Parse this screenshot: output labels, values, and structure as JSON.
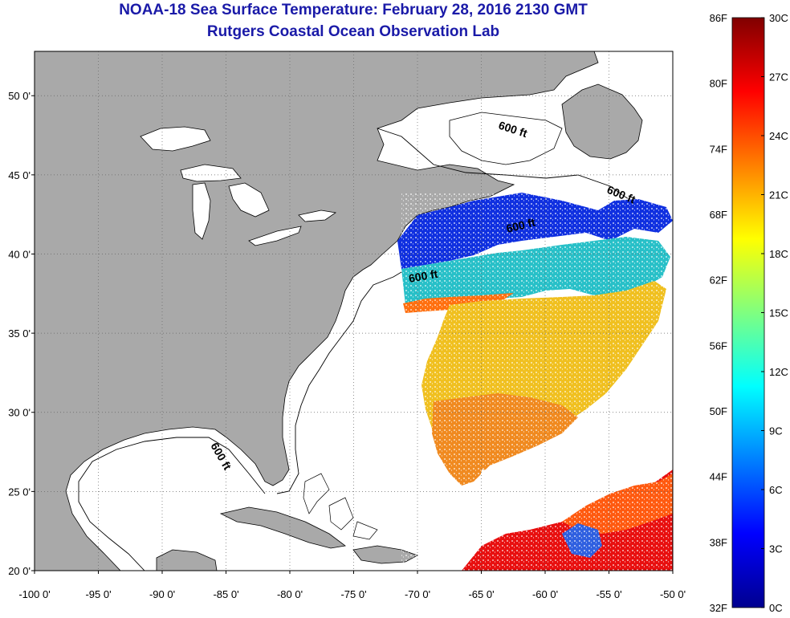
{
  "title": {
    "line1": "NOAA-18 Sea Surface Temperature:  February 28, 2016 2130 GMT",
    "line2": "Rutgers Coastal Ocean Observation Lab"
  },
  "map": {
    "lat_labels": [
      "50 0'",
      "45 0'",
      "40 0'",
      "35 0'",
      "30 0'",
      "25 0'",
      "20 0'"
    ],
    "lat_values": [
      50,
      45,
      40,
      35,
      30,
      25,
      20
    ],
    "lon_labels": [
      "-100 0'",
      "-95 0'",
      "-90 0'",
      "-85 0'",
      "-80 0'",
      "-75 0'",
      "-70 0'",
      "-65 0'",
      "-60 0'",
      "-55 0'",
      "-50 0'"
    ],
    "lon_values": [
      -100,
      -95,
      -90,
      -85,
      -80,
      -75,
      -70,
      -65,
      -60,
      -55,
      -50
    ],
    "lon_range": [
      -100,
      -50
    ],
    "lat_range": [
      20,
      52.8
    ],
    "isobath_label": "600 ft",
    "land_color": "#a9a9a9",
    "ocean_color": "#ffffff",
    "grid": true,
    "grid_style": "dotted"
  },
  "colorbar": {
    "fahrenheit_labels": [
      "86F",
      "80F",
      "74F",
      "68F",
      "62F",
      "56F",
      "50F",
      "44F",
      "38F",
      "32F"
    ],
    "celsius_labels": [
      "30C",
      "27C",
      "24C",
      "21C",
      "18C",
      "15C",
      "12C",
      "9C",
      "6C",
      "3C",
      "0C"
    ],
    "range_celsius": [
      0,
      30
    ],
    "colormap": "jet"
  }
}
